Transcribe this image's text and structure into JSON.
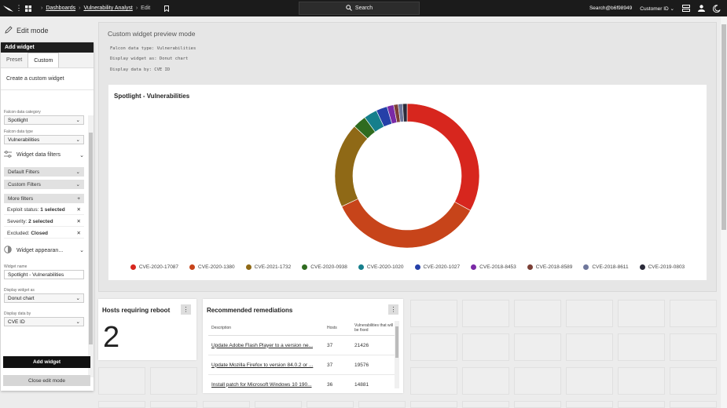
{
  "topbar": {
    "breadcrumbs": [
      "Dashboards",
      "Vulnerability Analyst"
    ],
    "current": "Edit",
    "search_label": "Search",
    "user": "Search@b6f98949",
    "customer": "Customer ID"
  },
  "sidebar": {
    "edit_mode": "Edit mode",
    "panel_title": "Add widget",
    "tabs": [
      "Preset",
      "Custom"
    ],
    "custom_title": "Create a custom widget",
    "data_category_label": "Falcon data category",
    "data_category_value": "Spotlight",
    "data_type_label": "Falcon data type",
    "data_type_value": "Vulnerabilities",
    "data_filters": "Widget data filters",
    "default_filters": "Default Filters",
    "custom_filters": "Custom Filters",
    "more_filters": "More filters",
    "chips": [
      {
        "label": "Exploit status:",
        "value": "1 selected"
      },
      {
        "label": "Severity:",
        "value": "2 selected"
      },
      {
        "label": "Excluded:",
        "value": "Closed"
      }
    ],
    "appearance": "Widget appearan...",
    "widget_name_label": "Widget name",
    "widget_name_value": "Spotlight - Vulnerabilities",
    "display_as_label": "Display widget as",
    "display_as_value": "Donut chart",
    "display_by_label": "Display data by",
    "display_by_value": "CVE ID",
    "add_button": "Add widget",
    "close_button": "Close edit mode"
  },
  "preview": {
    "title": "Custom widget preview mode",
    "line1": "Falcon data type: Vulnerabilities",
    "line2": "Display widget as: Donut chart",
    "line3": "Display data by: CVE ID",
    "chart_title": "Spotlight - Vulnerabilities"
  },
  "chart_data": {
    "type": "pie",
    "donut": true,
    "title": "Spotlight - Vulnerabilities",
    "legend_position": "bottom",
    "series": [
      {
        "name": "CVE-2020-17087",
        "value": 33,
        "color": "#d7261e"
      },
      {
        "name": "CVE-2020-1380",
        "value": 35,
        "color": "#c7441a"
      },
      {
        "name": "CVE-2021-1732",
        "value": 19,
        "color": "#8f6916"
      },
      {
        "name": "CVE-2020-0938",
        "value": 3,
        "color": "#2f6b1f"
      },
      {
        "name": "CVE-2020-1020",
        "value": 3,
        "color": "#167f8c"
      },
      {
        "name": "CVE-2020-1027",
        "value": 2.5,
        "color": "#2540a8"
      },
      {
        "name": "CVE-2018-8453",
        "value": 1.5,
        "color": "#7a2aa6"
      },
      {
        "name": "CVE-2018-8589",
        "value": 1,
        "color": "#7b3f36"
      },
      {
        "name": "CVE-2018-8611",
        "value": 1,
        "color": "#6f779c"
      },
      {
        "name": "CVE-2019-0803",
        "value": 1,
        "color": "#2b2b3a"
      }
    ]
  },
  "hosts_card": {
    "title": "Hosts requiring reboot",
    "value": "2"
  },
  "remediations": {
    "title": "Recommended remediations",
    "headers": [
      "Description",
      "Hosts",
      "Vulnerabilities that will be fixed"
    ],
    "rows": [
      [
        "Update Adobe Flash Player to a version ne...",
        "37",
        "21426"
      ],
      [
        "Update Mozilla Firefox to version 84.0.2 or ...",
        "37",
        "19576"
      ],
      [
        "Install patch for Microsoft Windows 10 190...",
        "36",
        "14881"
      ]
    ]
  }
}
